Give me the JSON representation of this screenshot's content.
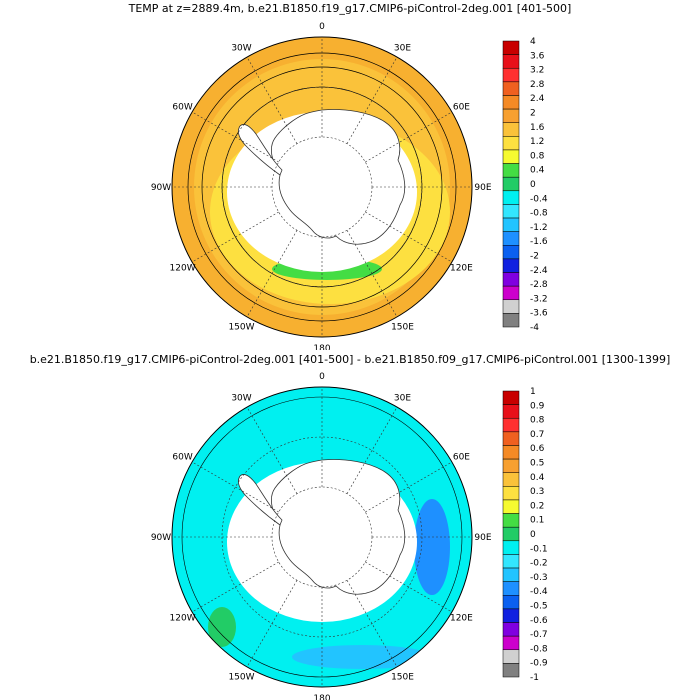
{
  "panels": [
    {
      "title": "TEMP at z=2889.4m, b.e21.B1850.f19_g17.CMIP6-piControl-2deg.001 [401-500]",
      "longitude_labels": [
        "0",
        "30E",
        "60E",
        "90E",
        "120E",
        "150E",
        "180",
        "150W",
        "120W",
        "90W",
        "60W",
        "30W"
      ],
      "colorbar_labels": [
        "4",
        "3.6",
        "3.2",
        "2.8",
        "2.4",
        "2",
        "1.6",
        "1.2",
        "0.8",
        "0.4",
        "0",
        "-0.4",
        "-0.8",
        "-1.2",
        "-1.6",
        "-2",
        "-2.4",
        "-2.8",
        "-3.2",
        "-3.6",
        "-4"
      ],
      "colorbar_colors": [
        "#c80000",
        "#e8101a",
        "#ff3030",
        "#f06020",
        "#f58a25",
        "#f7a030",
        "#fac23a",
        "#fde040",
        "#f6fa30",
        "#44dd44",
        "#22cc66",
        "#00f0f0",
        "#33e6ff",
        "#22c4ff",
        "#1e90ff",
        "#0a60f0",
        "#1020e0",
        "#8000e0",
        "#cc00cc",
        "#d0d0d0",
        "#808080"
      ],
      "ocean_color": "#f7b030",
      "inner_ring_color": "#fde040",
      "shelf_color": "#44dd44"
    },
    {
      "title": "b.e21.B1850.f19_g17.CMIP6-piControl-2deg.001 [401-500] - b.e21.B1850.f09_g17.CMIP6-piControl.001 [1300-1399]",
      "longitude_labels": [
        "0",
        "30E",
        "60E",
        "90E",
        "120E",
        "150E",
        "180",
        "150W",
        "120W",
        "90W",
        "60W",
        "30W"
      ],
      "colorbar_labels": [
        "1",
        "0.9",
        "0.8",
        "0.7",
        "0.6",
        "0.5",
        "0.4",
        "0.3",
        "0.2",
        "0.1",
        "0",
        "-0.1",
        "-0.2",
        "-0.3",
        "-0.4",
        "-0.5",
        "-0.6",
        "-0.7",
        "-0.8",
        "-0.9",
        "-1"
      ],
      "colorbar_colors": [
        "#c80000",
        "#e8101a",
        "#ff3030",
        "#f06020",
        "#f58a25",
        "#f7a030",
        "#fac23a",
        "#fde040",
        "#f6fa30",
        "#44dd44",
        "#22cc66",
        "#00f0f0",
        "#33e6ff",
        "#22c4ff",
        "#1e90ff",
        "#0a60f0",
        "#1020e0",
        "#8000e0",
        "#cc00cc",
        "#d0d0d0",
        "#808080"
      ],
      "ocean_color": "#00f0f0",
      "inner_ring_color": "#00f0f0",
      "shelf_color": "#1e90ff"
    }
  ]
}
